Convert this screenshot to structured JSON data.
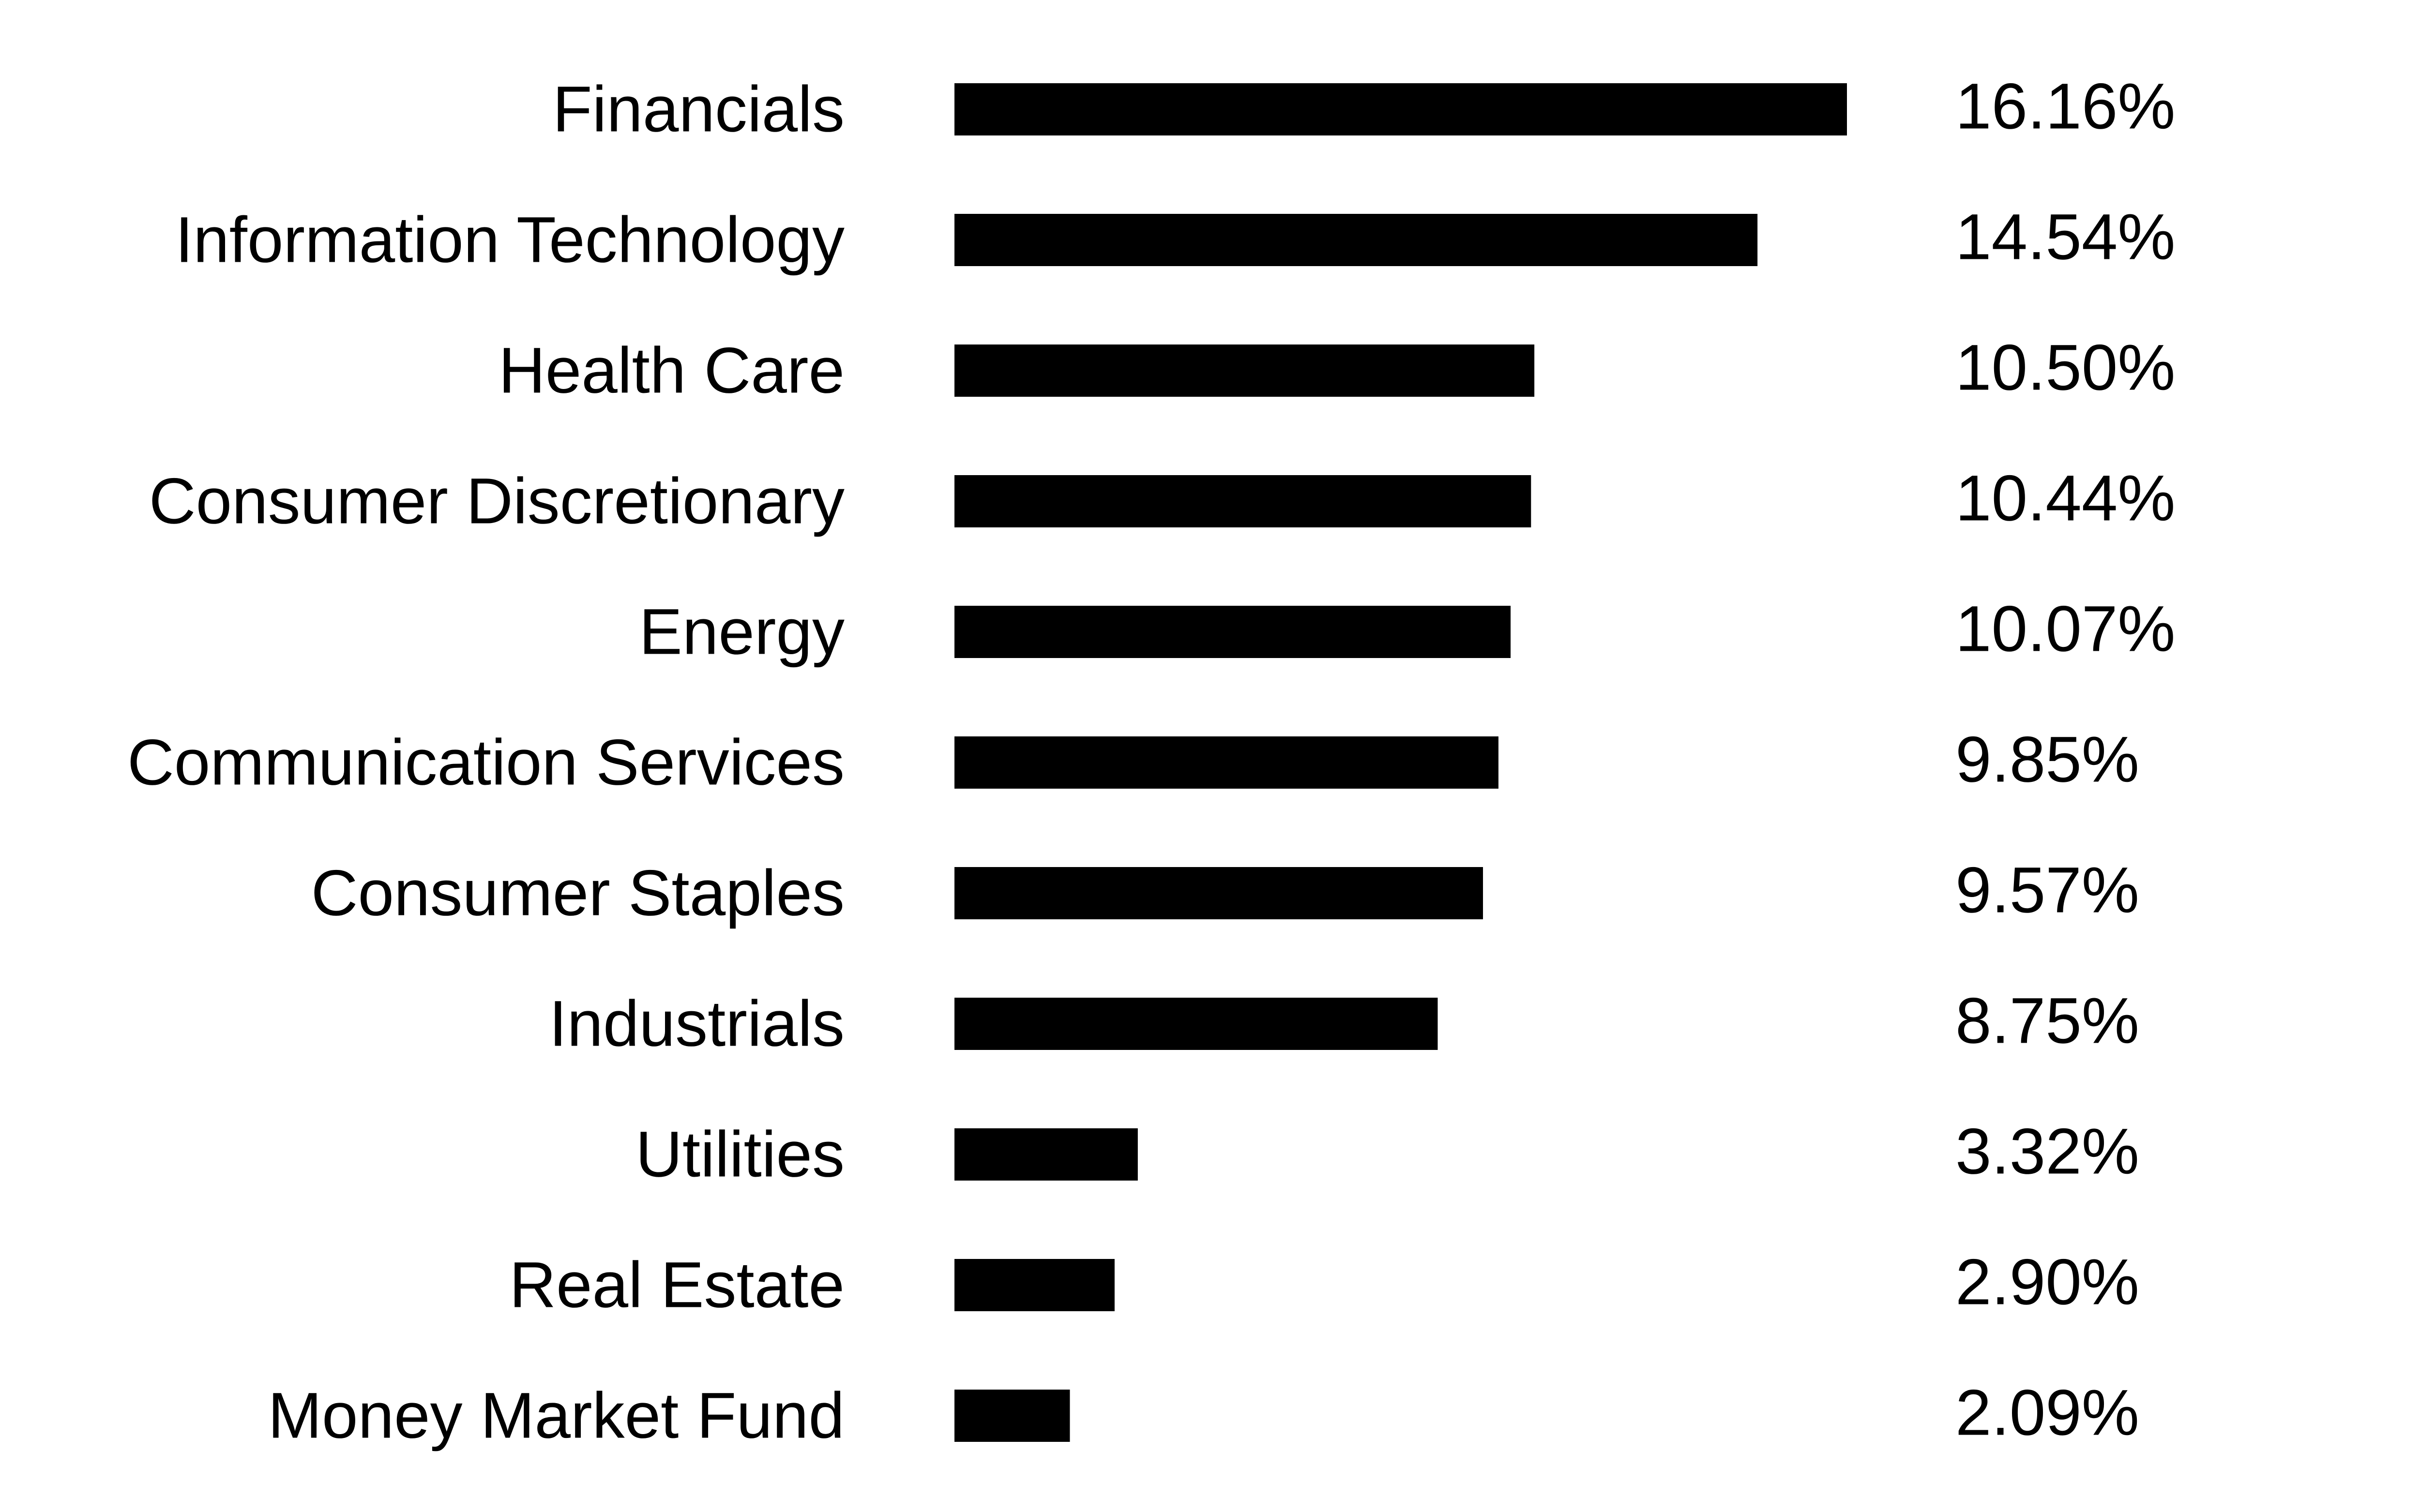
{
  "chart_data": {
    "type": "bar",
    "orientation": "horizontal",
    "title": "",
    "xlabel": "",
    "ylabel": "",
    "categories": [
      "Financials",
      "Information Technology",
      "Health Care",
      "Consumer Discretionary",
      "Energy",
      "Communication Services",
      "Consumer Staples",
      "Industrials",
      "Utilities",
      "Real Estate",
      "Money Market Fund"
    ],
    "values": [
      16.16,
      14.54,
      10.5,
      10.44,
      10.07,
      9.85,
      9.57,
      8.75,
      3.32,
      2.9,
      2.09
    ],
    "value_labels": [
      "16.16%",
      "14.54%",
      "10.50%",
      "10.44%",
      "10.07%",
      "9.85%",
      "9.57%",
      "8.75%",
      "3.32%",
      "2.90%",
      "2.09%"
    ],
    "xlim": [
      0,
      16.16
    ],
    "grid": false,
    "legend": "none",
    "bar_color": "#000000"
  }
}
